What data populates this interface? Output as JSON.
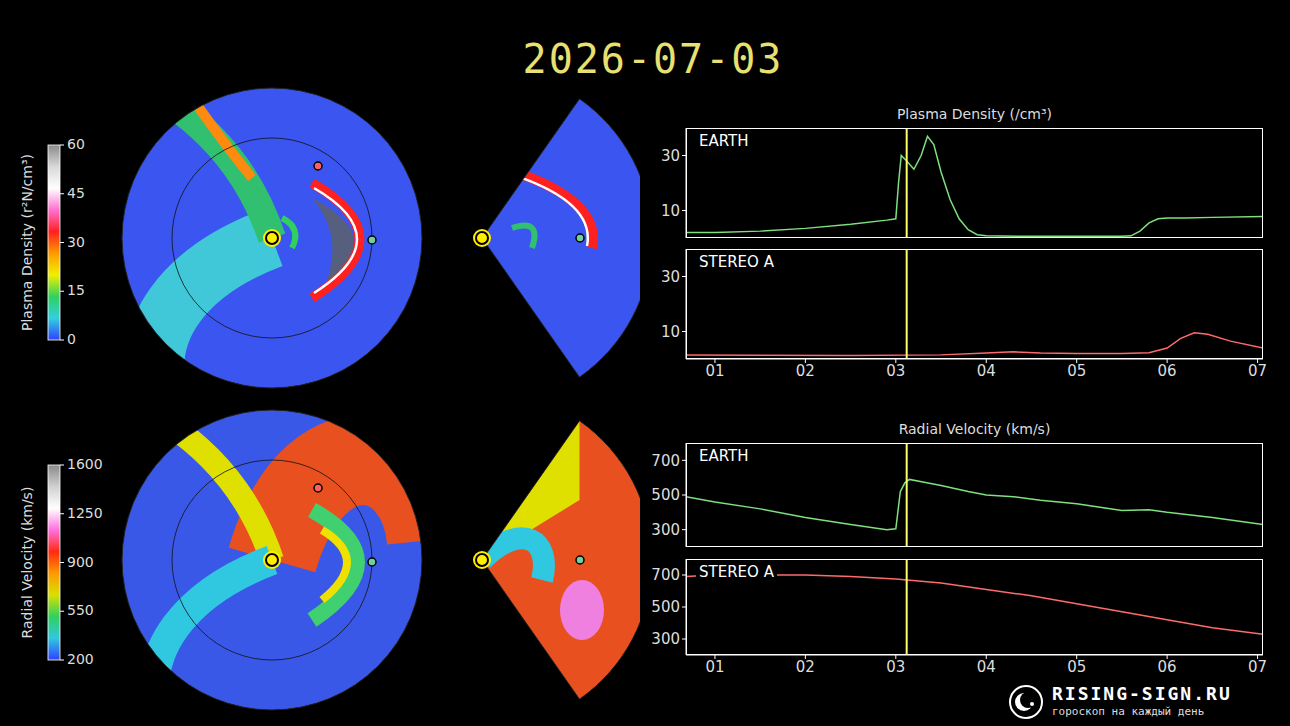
{
  "title": "2026-07-03",
  "colorbars": [
    {
      "label": "Plasma Density (r²N/cm³)",
      "range": [
        0,
        60
      ],
      "ticks": [
        0,
        15,
        30,
        45,
        60
      ]
    },
    {
      "label": "Radial Velocity (km/s)",
      "range": [
        200,
        1600
      ],
      "ticks": [
        200,
        550,
        900,
        1250,
        1600
      ]
    }
  ],
  "chart_data": [
    {
      "type": "line",
      "title": "Plasma Density (/cm³)",
      "x": [
        0.68,
        1.0,
        1.5,
        2.0,
        2.5,
        2.9,
        3.0,
        3.03,
        3.06,
        3.12,
        3.2,
        3.28,
        3.35,
        3.42,
        3.5,
        3.6,
        3.7,
        3.8,
        3.9,
        4.0,
        4.5,
        5.0,
        5.5,
        5.6,
        5.7,
        5.8,
        5.9,
        6.0,
        6.2,
        6.5,
        7.06
      ],
      "series": [
        {
          "name": "EARTH",
          "color": "#7ee07e",
          "values": [
            2,
            2,
            2.5,
            3.5,
            5,
            6.5,
            7,
            20,
            30,
            28,
            25,
            30,
            37,
            34,
            24,
            14,
            7,
            3,
            1.2,
            0.8,
            0.6,
            0.6,
            0.6,
            0.8,
            2.5,
            5.5,
            7,
            7.3,
            7.3,
            7.5,
            7.8
          ]
        }
      ],
      "xlim": [
        0.68,
        7.06
      ],
      "xticks": [
        {
          "value": 1,
          "label": "01"
        },
        {
          "value": 2,
          "label": "02"
        },
        {
          "value": 3,
          "label": "03"
        },
        {
          "value": 4,
          "label": "04"
        },
        {
          "value": 5,
          "label": "05"
        },
        {
          "value": 6,
          "label": "06"
        },
        {
          "value": 7,
          "label": "07"
        }
      ],
      "ylim": [
        0,
        40
      ],
      "yticks": [
        10,
        30
      ],
      "tick_labels": "y",
      "time_marker": 3.12
    },
    {
      "type": "line",
      "x": [
        0.68,
        1.5,
        2.5,
        3.5,
        4.0,
        4.3,
        4.6,
        5.0,
        5.5,
        5.8,
        6.0,
        6.15,
        6.3,
        6.45,
        6.7,
        7.06
      ],
      "series": [
        {
          "name": "STEREO A",
          "color": "#ff6a6a",
          "values": [
            1.5,
            1.4,
            1.3,
            1.5,
            2.2,
            2.6,
            2.2,
            2.0,
            2.0,
            2.3,
            4,
            7.5,
            9.5,
            9,
            6.5,
            4
          ]
        }
      ],
      "xlim": [
        0.68,
        7.06
      ],
      "xticks": [
        {
          "value": 1,
          "label": "01"
        },
        {
          "value": 2,
          "label": "02"
        },
        {
          "value": 3,
          "label": "03"
        },
        {
          "value": 4,
          "label": "04"
        },
        {
          "value": 5,
          "label": "05"
        },
        {
          "value": 6,
          "label": "06"
        },
        {
          "value": 7,
          "label": "07"
        }
      ],
      "ylim": [
        0,
        40
      ],
      "yticks": [
        10,
        30
      ],
      "time_marker": 3.12
    },
    {
      "type": "line",
      "title": "Radial Velocity (km/s)",
      "x": [
        0.68,
        1.0,
        1.5,
        2.0,
        2.5,
        2.9,
        3.0,
        3.05,
        3.1,
        3.15,
        3.3,
        3.5,
        3.8,
        4.0,
        4.3,
        4.6,
        5.0,
        5.5,
        5.8,
        6.0,
        6.5,
        7.06
      ],
      "series": [
        {
          "name": "EARTH",
          "color": "#7ee07e",
          "values": [
            490,
            460,
            420,
            370,
            330,
            300,
            305,
            520,
            570,
            590,
            575,
            555,
            520,
            500,
            490,
            470,
            450,
            410,
            415,
            400,
            370,
            330
          ]
        }
      ],
      "xlim": [
        0.68,
        7.06
      ],
      "xticks": [
        {
          "value": 1,
          "label": "01"
        },
        {
          "value": 2,
          "label": "02"
        },
        {
          "value": 3,
          "label": "03"
        },
        {
          "value": 4,
          "label": "04"
        },
        {
          "value": 5,
          "label": "05"
        },
        {
          "value": 6,
          "label": "06"
        },
        {
          "value": 7,
          "label": "07"
        }
      ],
      "ylim": [
        200,
        800
      ],
      "yticks": [
        300,
        500,
        700
      ],
      "tick_labels": "y",
      "time_marker": 3.12
    },
    {
      "type": "line",
      "x": [
        0.68,
        1.0,
        1.5,
        2.0,
        2.5,
        3.0,
        3.5,
        4.0,
        4.5,
        5.0,
        5.5,
        6.0,
        6.5,
        7.06
      ],
      "series": [
        {
          "name": "STEREO A",
          "color": "#ff6a6a",
          "values": [
            690,
            700,
            700,
            700,
            690,
            675,
            650,
            610,
            570,
            520,
            470,
            420,
            370,
            330
          ]
        }
      ],
      "xlim": [
        0.68,
        7.06
      ],
      "xticks": [
        {
          "value": 1,
          "label": "01"
        },
        {
          "value": 2,
          "label": "02"
        },
        {
          "value": 3,
          "label": "03"
        },
        {
          "value": 4,
          "label": "04"
        },
        {
          "value": 5,
          "label": "05"
        },
        {
          "value": 6,
          "label": "06"
        },
        {
          "value": 7,
          "label": "07"
        }
      ],
      "ylim": [
        200,
        800
      ],
      "yticks": [
        300,
        500,
        700
      ],
      "time_marker": 3.12
    }
  ],
  "watermark": {
    "site": "RISING-SIGN.RU",
    "tagline": "гороскоп на каждый день"
  }
}
